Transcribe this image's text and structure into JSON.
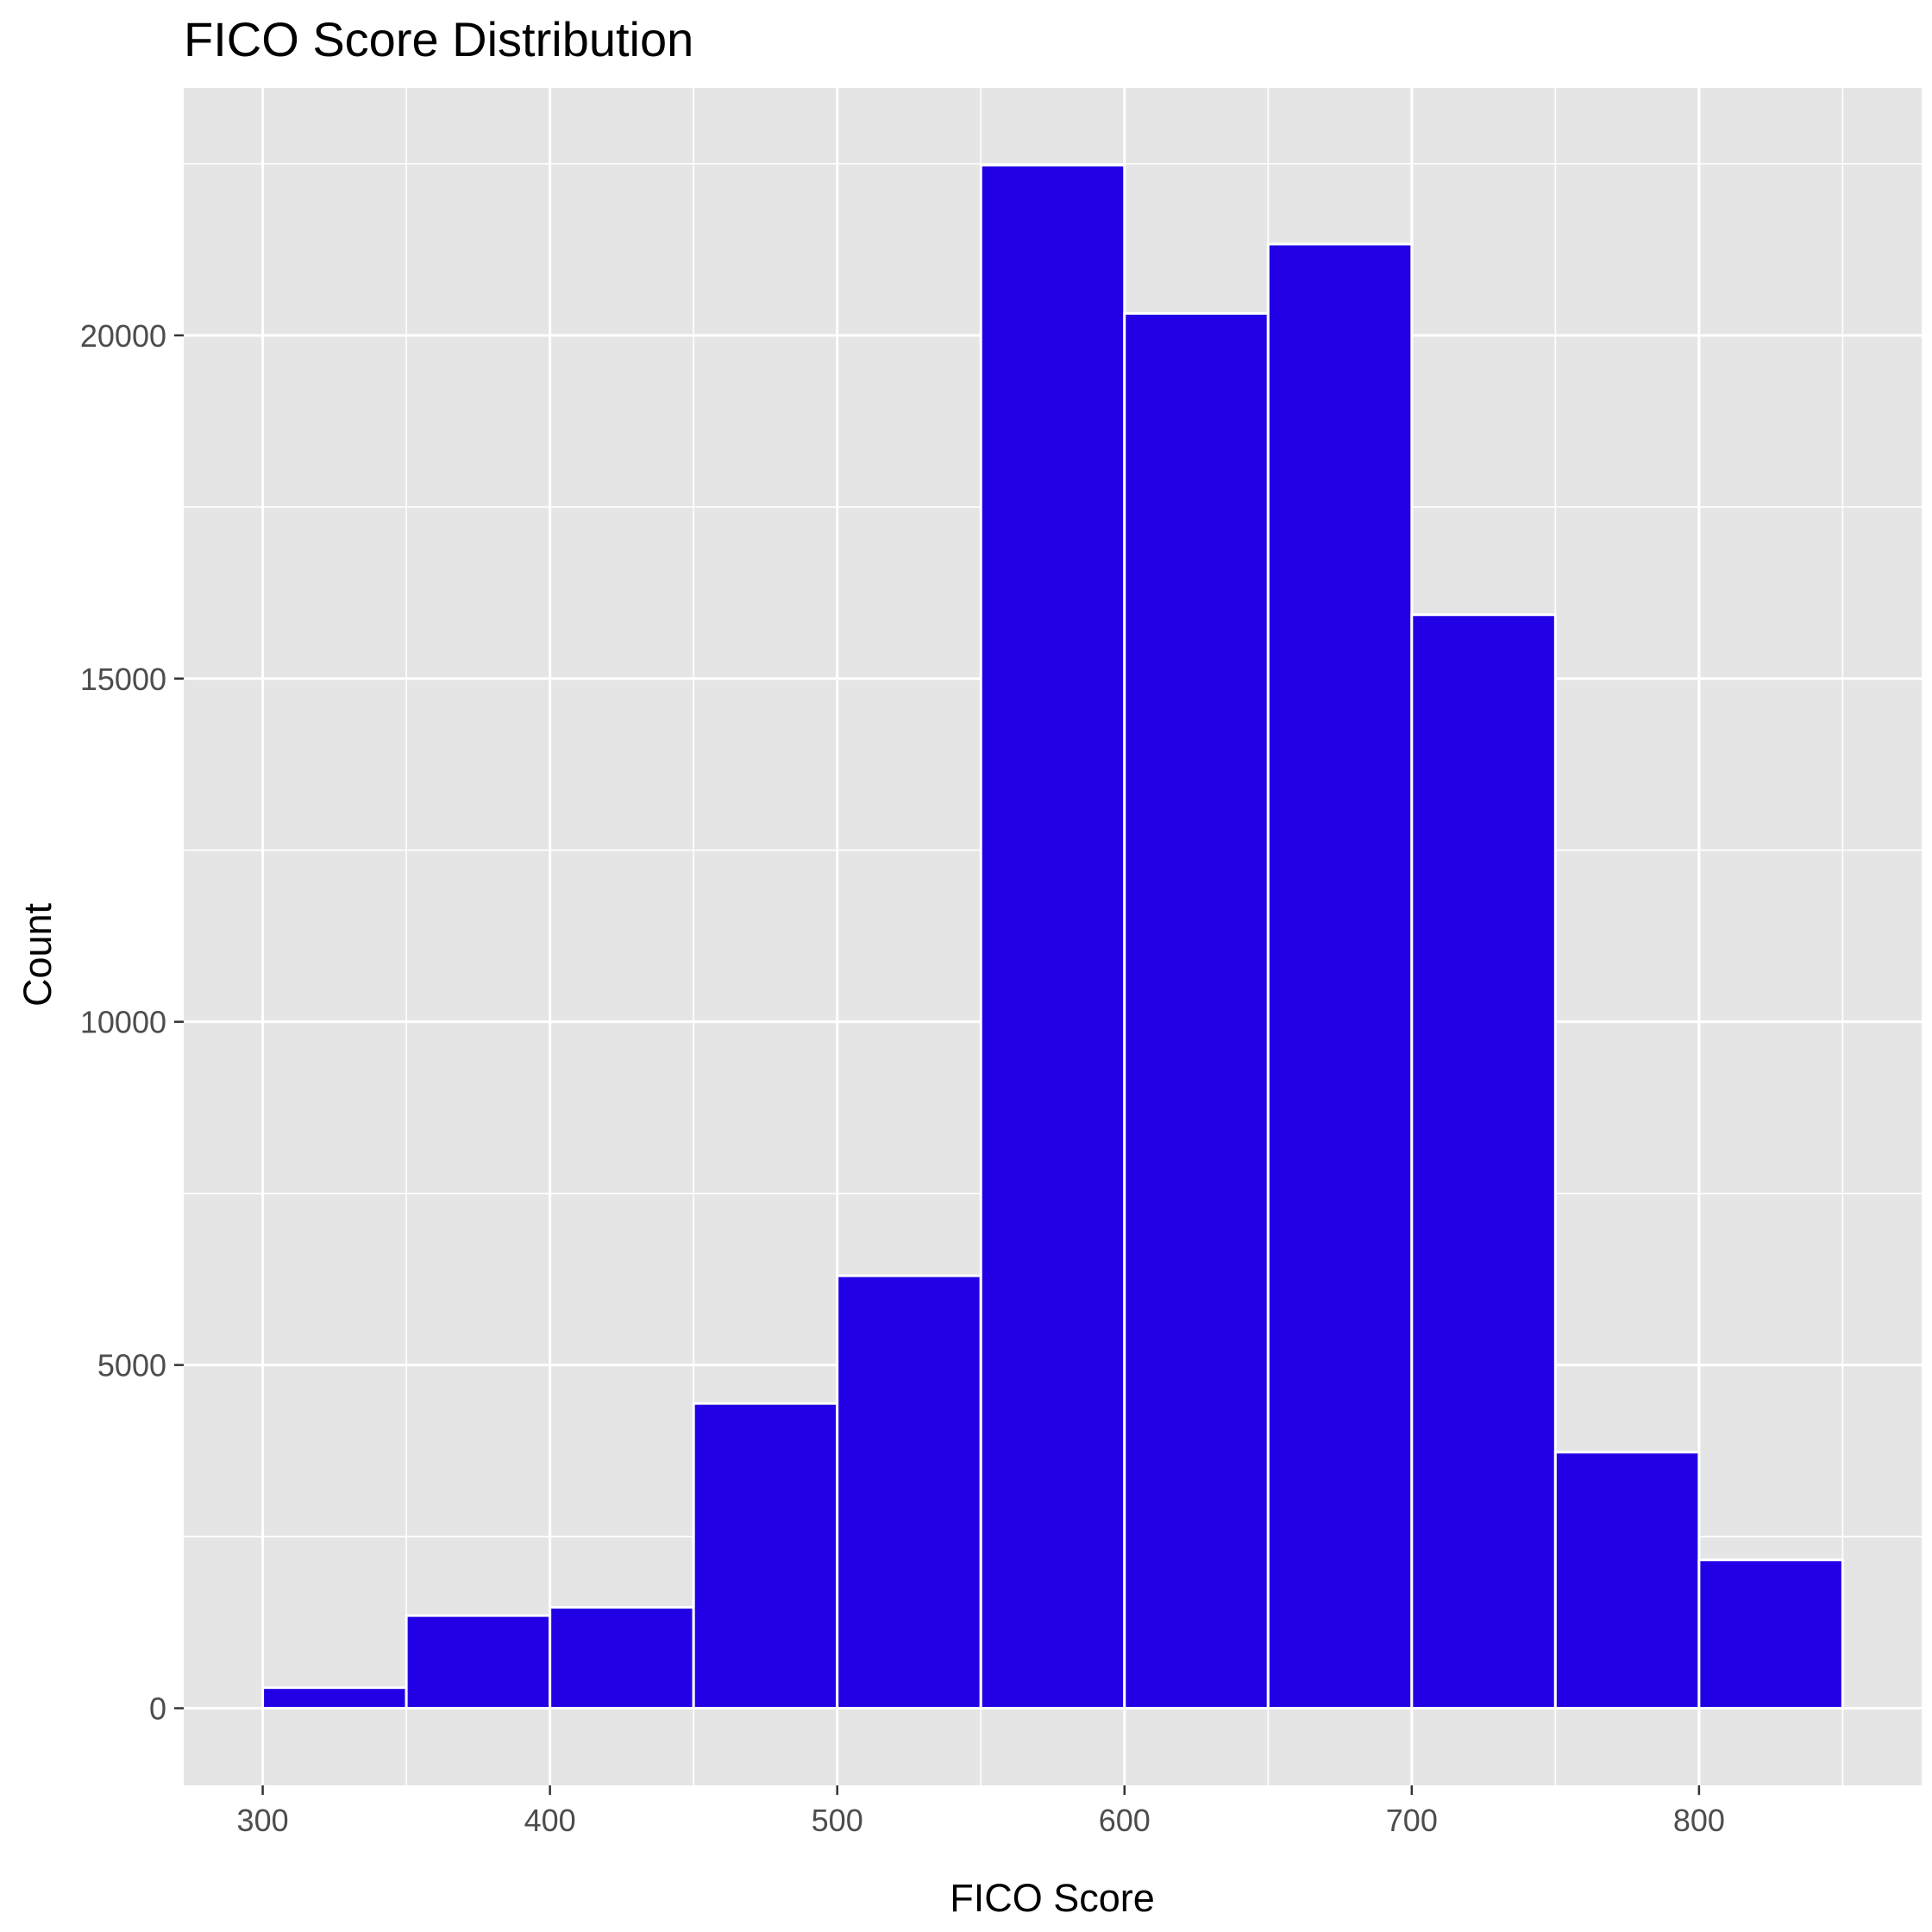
{
  "chart_data": {
    "type": "bar",
    "title": "FICO Score Distribution",
    "xlabel": "FICO Score",
    "ylabel": "Count",
    "bins": [
      {
        "start": 300,
        "end": 350,
        "count": 300
      },
      {
        "start": 350,
        "end": 400,
        "count": 1350
      },
      {
        "start": 400,
        "end": 450,
        "count": 1470
      },
      {
        "start": 450,
        "end": 500,
        "count": 4440
      },
      {
        "start": 500,
        "end": 550,
        "count": 6300
      },
      {
        "start": 550,
        "end": 600,
        "count": 22480
      },
      {
        "start": 600,
        "end": 650,
        "count": 20320
      },
      {
        "start": 650,
        "end": 700,
        "count": 21330
      },
      {
        "start": 700,
        "end": 750,
        "count": 15930
      },
      {
        "start": 750,
        "end": 800,
        "count": 3730
      },
      {
        "start": 800,
        "end": 850,
        "count": 2160
      }
    ],
    "x_ticks": [
      300,
      400,
      500,
      600,
      700,
      800
    ],
    "y_ticks": [
      0,
      5000,
      10000,
      15000,
      20000
    ],
    "xlim": [
      272.5,
      877.5
    ],
    "ylim": [
      -1124,
      23604
    ],
    "grid": true,
    "colors": {
      "bar_fill": "#2200e6",
      "bar_outline": "#ffffff",
      "panel_background": "#e5e5e5",
      "grid": "#ffffff",
      "tick_mark": "#333333"
    }
  }
}
